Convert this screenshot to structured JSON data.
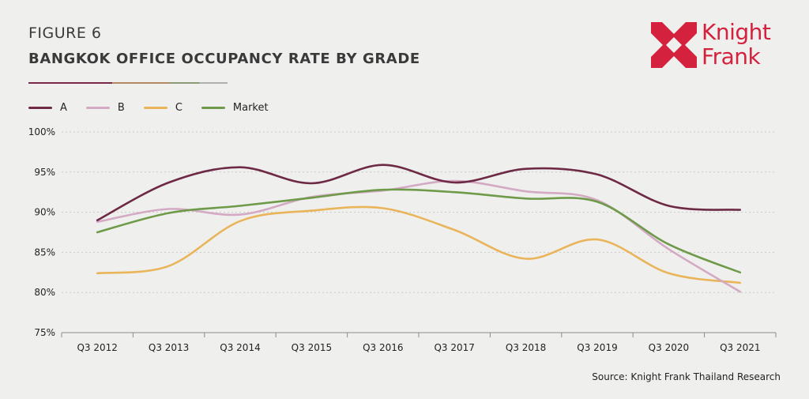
{
  "figure_label": "FIGURE 6",
  "title": "BANGKOK OFFICE OCCUPANCY RATE BY GRADE",
  "logo": {
    "line1": "Knight",
    "line2": "Frank",
    "color": "#d4213d",
    "icon": "knight-frank-diamond-logo"
  },
  "source": "Source: Knight Frank Thailand Research",
  "colors": {
    "A": "#6e2a45",
    "B": "#d4a9c4",
    "C": "#e9b45a",
    "Market": "#6e9a49"
  },
  "chart_data": {
    "type": "line",
    "title": "BANGKOK OFFICE OCCUPANCY RATE BY GRADE",
    "categories": [
      "Q3 2012",
      "Q3 2013",
      "Q3 2014",
      "Q3 2015",
      "Q3 2016",
      "Q3 2017",
      "Q3 2018",
      "Q3 2019",
      "Q3 2020",
      "Q3 2021"
    ],
    "series": [
      {
        "name": "A",
        "values": [
          89.0,
          93.7,
          95.6,
          93.6,
          95.9,
          93.7,
          95.4,
          94.7,
          90.8,
          90.3
        ]
      },
      {
        "name": "B",
        "values": [
          88.8,
          90.4,
          89.7,
          91.9,
          92.7,
          93.9,
          92.6,
          91.5,
          85.4,
          80.1
        ]
      },
      {
        "name": "C",
        "values": [
          82.4,
          83.3,
          88.9,
          90.2,
          90.5,
          87.8,
          84.2,
          86.6,
          82.4,
          81.2
        ]
      },
      {
        "name": "Market",
        "values": [
          87.5,
          89.9,
          90.8,
          91.8,
          92.8,
          92.5,
          91.7,
          91.3,
          86.0,
          82.5
        ]
      }
    ],
    "y_ticks": [
      "100%",
      "95%",
      "90%",
      "85%",
      "80%",
      "75%"
    ],
    "y_tick_values": [
      100,
      95,
      90,
      85,
      80,
      75
    ],
    "ylim": [
      75,
      100
    ],
    "grid": true,
    "legend_position": "top-left"
  }
}
